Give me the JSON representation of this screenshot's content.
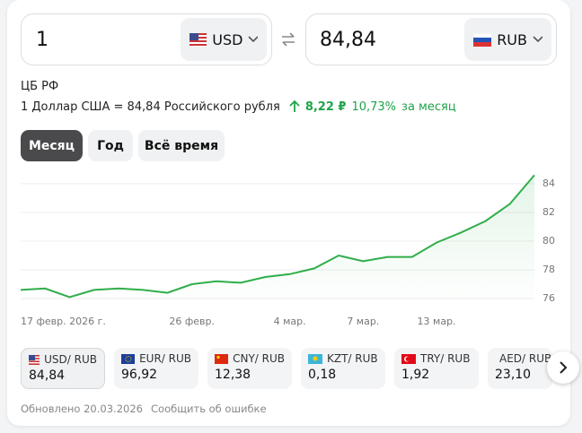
{
  "converter": {
    "from": {
      "amount": "1",
      "currency": "USD"
    },
    "to": {
      "amount": "84,84",
      "currency": "RUB"
    }
  },
  "source": "ЦБ РФ",
  "rate_text": "1 Доллар США = 84,84 Российского рубля",
  "change": {
    "amount": "8,22 ₽",
    "percent": "10,73%",
    "period": "за месяц"
  },
  "periods": [
    "Месяц",
    "Год",
    "Всё время"
  ],
  "chart_data": {
    "type": "line",
    "categories": [
      "17 февр. 2026 г.",
      null,
      null,
      null,
      null,
      null,
      null,
      "26 февр.",
      null,
      null,
      null,
      "4 мар.",
      null,
      null,
      "7 мар.",
      null,
      null,
      "13 мар.",
      null,
      null,
      null,
      null
    ],
    "values": [
      76.6,
      76.7,
      76.1,
      76.6,
      76.7,
      76.6,
      76.4,
      77.0,
      77.2,
      77.1,
      77.5,
      77.7,
      78.1,
      79.0,
      78.6,
      78.9,
      78.9,
      79.9,
      80.6,
      81.4,
      82.6,
      84.6
    ],
    "color": "#2fae4a",
    "ylim": [
      75.5,
      85
    ],
    "yticks": [
      76,
      78,
      80,
      82,
      84
    ],
    "grid": true
  },
  "pairs": [
    {
      "label": "USD/ RUB",
      "value": "84,84"
    },
    {
      "label": "EUR/ RUB",
      "value": "96,92"
    },
    {
      "label": "CNY/ RUB",
      "value": "12,38"
    },
    {
      "label": "KZT/ RUB",
      "value": "0,18"
    },
    {
      "label": "TRY/ RUB",
      "value": "1,92"
    },
    {
      "label": "AED/ RUB",
      "value": "23,10"
    }
  ],
  "footer": {
    "updated": "Обновлено 20.03.2026",
    "report": "Сообщить об ошибке"
  }
}
